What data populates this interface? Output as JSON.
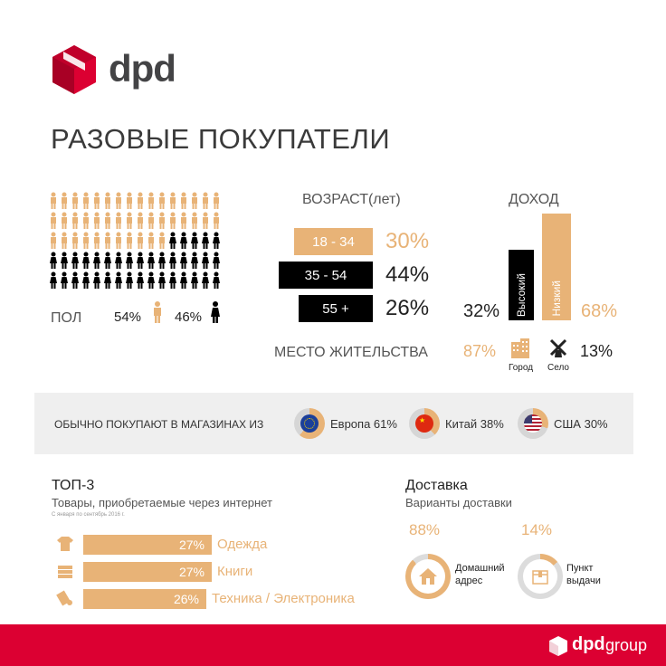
{
  "brand": {
    "name": "dpd",
    "footer_brand": "dpd",
    "footer_group": "group"
  },
  "title": "РАЗОВЫЕ ПОКУПАТЕЛИ",
  "gender": {
    "label": "ПОЛ",
    "male_pct": "54%",
    "female_pct": "46%",
    "male_share": 0.54,
    "female_share": 0.46
  },
  "age": {
    "title": "ВОЗРАСТ(лет)",
    "groups": [
      {
        "range": "18 - 34",
        "pct": "30%",
        "value": 30
      },
      {
        "range": "35 - 54",
        "pct": "44%",
        "value": 44
      },
      {
        "range": "55 +",
        "pct": "26%",
        "value": 26
      }
    ]
  },
  "income": {
    "title": "ДОХОД",
    "high_label": "Высокий",
    "low_label": "Низкий",
    "high_pct": "32%",
    "low_pct": "68%",
    "high_value": 32,
    "low_value": 68
  },
  "residence": {
    "label": "МЕСТО ЖИТЕЛЬСТВА",
    "city_pct": "87%",
    "city_label": "Город",
    "village_pct": "13%",
    "village_label": "Село"
  },
  "shops": {
    "label": "ОБЫЧНО ПОКУПАЮТ В МАГАЗИНАХ ИЗ",
    "items": [
      {
        "name": "Европа 61%",
        "value": 61,
        "icon": "eu-flag-icon"
      },
      {
        "name": "Китай 38%",
        "value": 38,
        "icon": "china-flag-icon"
      },
      {
        "name": "США 30%",
        "value": 30,
        "icon": "usa-flag-icon"
      }
    ]
  },
  "top3": {
    "title": "ТОП-3",
    "subtitle": "Товары, приобретаемые через интернет",
    "note": "С января по сентябрь 2016 г.",
    "items": [
      {
        "pct": "27%",
        "label": "Одежда",
        "value": 27,
        "icon": "tshirt-icon"
      },
      {
        "pct": "27%",
        "label": "Книги",
        "value": 27,
        "icon": "books-icon"
      },
      {
        "pct": "26%",
        "label": "Техника / Электроника",
        "value": 26,
        "icon": "electronics-icon"
      }
    ]
  },
  "delivery": {
    "title": "Доставка",
    "subtitle": "Варианты доставки",
    "home_pct": "88%",
    "home_label_1": "Домашний",
    "home_label_2": "адрес",
    "home_value": 88,
    "pickup_pct": "14%",
    "pickup_label_1": "Пункт",
    "pickup_label_2": "выдачи",
    "pickup_value": 14
  },
  "colors": {
    "accent": "#e8b377",
    "brand_red": "#dc0032",
    "dark": "#000000",
    "band": "#efefef"
  }
}
